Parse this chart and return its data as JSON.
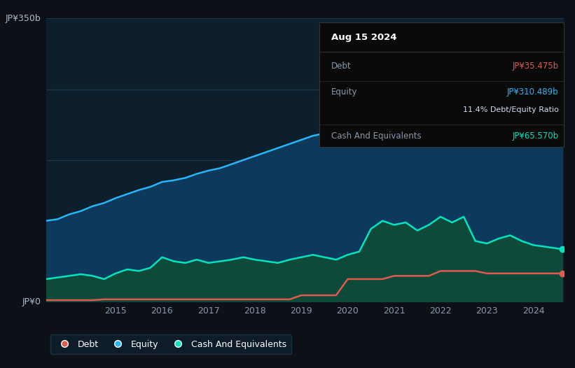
{
  "bg_color": "#0d1117",
  "plot_bg_color": "#0d1f2d",
  "grid_color": "#1e3a4a",
  "y_label_top": "JP¥350b",
  "y_label_bottom": "JP¥0",
  "tooltip_date": "Aug 15 2024",
  "tooltip_debt_label": "Debt",
  "tooltip_debt_value": "JP¥35.475b",
  "tooltip_equity_label": "Equity",
  "tooltip_equity_value": "JP¥310.489b",
  "tooltip_ratio": "11.4% Debt/Equity Ratio",
  "tooltip_cash_label": "Cash And Equivalents",
  "tooltip_cash_value": "JP¥65.570b",
  "debt_color": "#e05a4e",
  "equity_color": "#29b6f6",
  "cash_color": "#00e5c0",
  "equity_fill_color": "#0d3a5c",
  "cash_fill_color": "#0d4a3a",
  "legend_bg": "#0d1f2d",
  "legend_border": "#1e3a4a",
  "years": [
    2013.5,
    2013.75,
    2014.0,
    2014.25,
    2014.5,
    2014.75,
    2015.0,
    2015.25,
    2015.5,
    2015.75,
    2016.0,
    2016.25,
    2016.5,
    2016.75,
    2017.0,
    2017.25,
    2017.5,
    2017.75,
    2018.0,
    2018.25,
    2018.5,
    2018.75,
    2019.0,
    2019.25,
    2019.5,
    2019.75,
    2020.0,
    2020.25,
    2020.5,
    2020.75,
    2021.0,
    2021.25,
    2021.5,
    2021.75,
    2022.0,
    2022.25,
    2022.5,
    2022.75,
    2023.0,
    2023.25,
    2023.5,
    2023.75,
    2024.0,
    2024.25,
    2024.5,
    2024.62
  ],
  "equity": [
    100,
    102,
    108,
    112,
    118,
    122,
    128,
    133,
    138,
    142,
    148,
    150,
    153,
    158,
    162,
    165,
    170,
    175,
    180,
    185,
    190,
    195,
    200,
    205,
    208,
    212,
    218,
    222,
    228,
    235,
    242,
    250,
    257,
    263,
    268,
    272,
    278,
    283,
    288,
    292,
    297,
    303,
    307,
    309,
    311,
    310
  ],
  "cash": [
    28,
    30,
    32,
    34,
    32,
    28,
    35,
    40,
    38,
    42,
    55,
    50,
    48,
    52,
    48,
    50,
    52,
    55,
    52,
    50,
    48,
    52,
    55,
    58,
    55,
    52,
    58,
    62,
    90,
    100,
    95,
    98,
    88,
    95,
    105,
    98,
    105,
    75,
    72,
    78,
    82,
    75,
    70,
    68,
    66,
    65
  ],
  "debt": [
    2,
    2,
    2,
    2,
    2,
    3,
    3,
    3,
    3,
    3,
    3,
    3,
    3,
    3,
    3,
    3,
    3,
    3,
    3,
    3,
    3,
    3,
    8,
    8,
    8,
    8,
    28,
    28,
    28,
    28,
    32,
    32,
    32,
    32,
    38,
    38,
    38,
    38,
    35,
    35,
    35,
    35,
    35,
    35,
    35,
    35
  ],
  "ylim": [
    0,
    350
  ],
  "xlim": [
    2013.5,
    2024.65
  ]
}
